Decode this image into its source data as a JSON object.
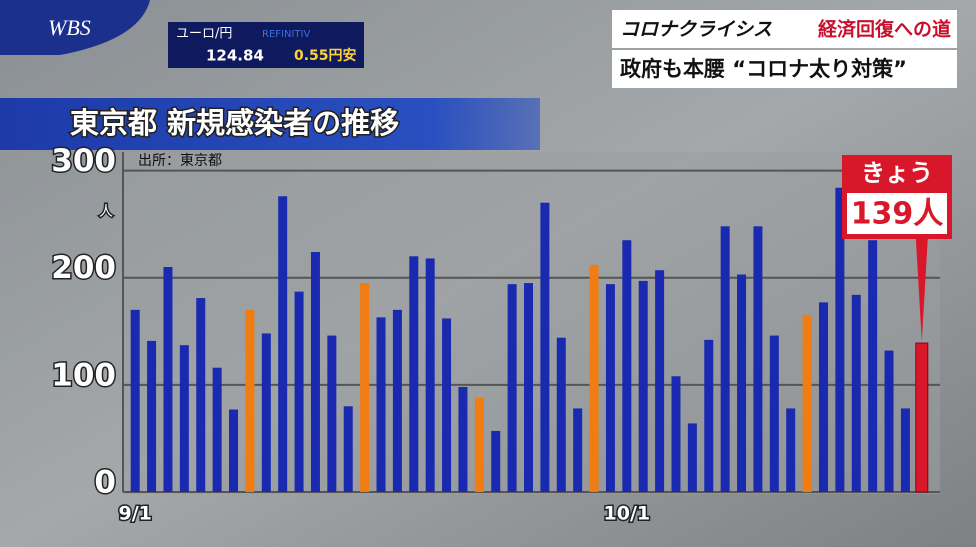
{
  "header": {
    "logo": "WBS",
    "currency_pair": "ユーロ/円",
    "provider": "REFINITIV",
    "rate": "124.84",
    "change": "0.55円安",
    "series_title": "コロナクライシス",
    "series_subtitle": "経済回復への道",
    "headline": "政府も本腰 “コロナ太り対策”"
  },
  "chart_data": {
    "type": "bar",
    "title": "東京都 新規感染者の推移",
    "source": "出所：東京都",
    "y_unit": "人",
    "annotation": "きょう",
    "categories": [
      "9/1",
      null,
      null,
      null,
      null,
      null,
      null,
      null,
      null,
      null,
      null,
      null,
      null,
      null,
      null,
      null,
      null,
      null,
      null,
      null,
      null,
      null,
      null,
      null,
      null,
      null,
      null,
      null,
      null,
      null,
      "10/1",
      null,
      null,
      null,
      null,
      null,
      null,
      null,
      null,
      null,
      null,
      null,
      null,
      null,
      null,
      null,
      null,
      null,
      null
    ],
    "values": [
      170,
      141,
      210,
      137,
      181,
      116,
      77,
      170,
      148,
      276,
      187,
      224,
      146,
      80,
      195,
      163,
      170,
      220,
      218,
      162,
      98,
      88,
      57,
      194,
      195,
      270,
      144,
      78,
      212,
      194,
      235,
      197,
      207,
      108,
      64,
      142,
      248,
      203,
      248,
      146,
      78,
      165,
      177,
      284,
      184,
      235,
      132,
      78,
      139
    ],
    "value_labels": [
      null,
      null,
      null,
      null,
      null,
      null,
      null,
      null,
      null,
      null,
      null,
      null,
      null,
      null,
      null,
      null,
      null,
      null,
      null,
      null,
      null,
      null,
      null,
      null,
      null,
      null,
      null,
      null,
      null,
      null,
      null,
      null,
      null,
      null,
      null,
      null,
      null,
      null,
      null,
      null,
      null,
      null,
      null,
      null,
      null,
      null,
      null,
      null,
      "139人"
    ],
    "colors": [
      "#1a2ab0",
      "#1a2ab0",
      "#1a2ab0",
      "#1a2ab0",
      "#1a2ab0",
      "#1a2ab0",
      "#1a2ab0",
      "#f07c12",
      "#1a2ab0",
      "#1a2ab0",
      "#1a2ab0",
      "#1a2ab0",
      "#1a2ab0",
      "#1a2ab0",
      "#f07c12",
      "#1a2ab0",
      "#1a2ab0",
      "#1a2ab0",
      "#1a2ab0",
      "#1a2ab0",
      "#1a2ab0",
      "#f07c12",
      "#1a2ab0",
      "#1a2ab0",
      "#1a2ab0",
      "#1a2ab0",
      "#1a2ab0",
      "#1a2ab0",
      "#f07c12",
      "#1a2ab0",
      "#1a2ab0",
      "#1a2ab0",
      "#1a2ab0",
      "#1a2ab0",
      "#1a2ab0",
      "#1a2ab0",
      "#1a2ab0",
      "#1a2ab0",
      "#1a2ab0",
      "#1a2ab0",
      "#1a2ab0",
      "#f07c12",
      "#1a2ab0",
      "#1a2ab0",
      "#1a2ab0",
      "#1a2ab0",
      "#1a2ab0",
      "#1a2ab0",
      "#d9172b"
    ],
    "ylim": [
      0,
      308
    ],
    "yticks": [
      0,
      100,
      200,
      300
    ],
    "grid": true
  }
}
